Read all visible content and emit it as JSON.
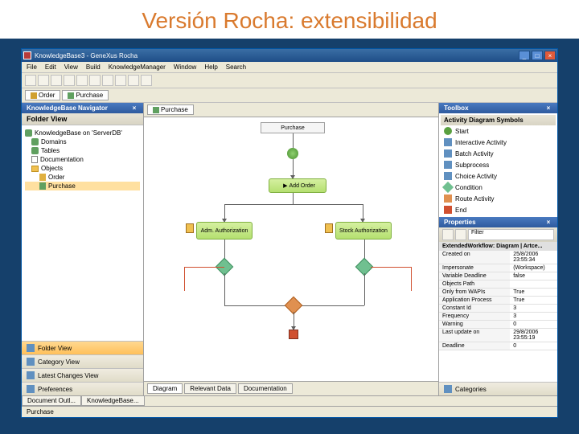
{
  "slide": {
    "title": "Versión Rocha: extensibilidad"
  },
  "window": {
    "title": "KnowledgeBase3 - GeneXus Rocha"
  },
  "menu": [
    "File",
    "Edit",
    "View",
    "Build",
    "KnowledgeManager",
    "Window",
    "Help",
    "Search"
  ],
  "top_tabs": [
    {
      "label": "Order"
    },
    {
      "label": "Purchase"
    }
  ],
  "navigator": {
    "title": "KnowledgeBase Navigator",
    "folder_view": "Folder View",
    "root": "KnowledgeBase on 'ServerDB'",
    "items": [
      {
        "label": "Domains",
        "lvl": 1,
        "icon": "db"
      },
      {
        "label": "Tables",
        "lvl": 1,
        "icon": "db"
      },
      {
        "label": "Documentation",
        "lvl": 1,
        "icon": "doc"
      },
      {
        "label": "Objects",
        "lvl": 1,
        "icon": "folder"
      },
      {
        "label": "Order",
        "lvl": 2,
        "icon": "order"
      },
      {
        "label": "Purchase",
        "lvl": 2,
        "icon": "purchase",
        "sel": true
      }
    ],
    "stack": [
      "Folder View",
      "Category View",
      "Latest Changes View",
      "Preferences"
    ]
  },
  "center": {
    "tabs": [
      "Purchase"
    ],
    "title_node": "Purchase",
    "add_order": "Add Order",
    "adm": "Adm. Authorization",
    "stock": "Stock Authorization",
    "bottom_tabs": [
      "Diagram",
      "Relevant Data",
      "Documentation"
    ]
  },
  "toolbox": {
    "title": "Toolbox",
    "group": "Activity Diagram Symbols",
    "items": [
      {
        "label": "Start",
        "color": "#5aa040"
      },
      {
        "label": "Interactive Activity",
        "color": "#6090c0"
      },
      {
        "label": "Batch Activity",
        "color": "#6090c0"
      },
      {
        "label": "Subprocess",
        "color": "#6090c0"
      },
      {
        "label": "Choice Activity",
        "color": "#6090c0"
      },
      {
        "label": "Condition",
        "color": "#70c090"
      },
      {
        "label": "Route Activity",
        "color": "#e09050"
      },
      {
        "label": "End",
        "color": "#d05030"
      }
    ]
  },
  "properties": {
    "title": "Properties",
    "filter": "Filter",
    "group": "ExtendedWorkflow: Diagram | Artce...",
    "rows": [
      {
        "k": "Created on",
        "v": "25/8/2006 23:55:34"
      },
      {
        "k": "Impersonate",
        "v": "(Workspace)"
      },
      {
        "k": "Variable Deadline",
        "v": "false"
      },
      {
        "k": "Objects Path",
        "v": ""
      },
      {
        "k": "Only from WAPIs",
        "v": "True"
      },
      {
        "k": "Application Process",
        "v": "True"
      },
      {
        "k": "Constant Id",
        "v": "3"
      },
      {
        "k": "Frequency",
        "v": "3"
      },
      {
        "k": "Warning",
        "v": "0"
      },
      {
        "k": "Last update on",
        "v": "29/8/2006 23:55:19"
      },
      {
        "k": "Deadline",
        "v": "0"
      }
    ],
    "footer": "Categories"
  },
  "bottom": {
    "tabs": [
      "Document Outl...",
      "KnowledgeBase..."
    ]
  },
  "status": {
    "text": "Purchase"
  },
  "colors": {
    "titlebar": "#2e5a9e",
    "panel": "#ece9d8",
    "accent": "#d97a2e"
  }
}
